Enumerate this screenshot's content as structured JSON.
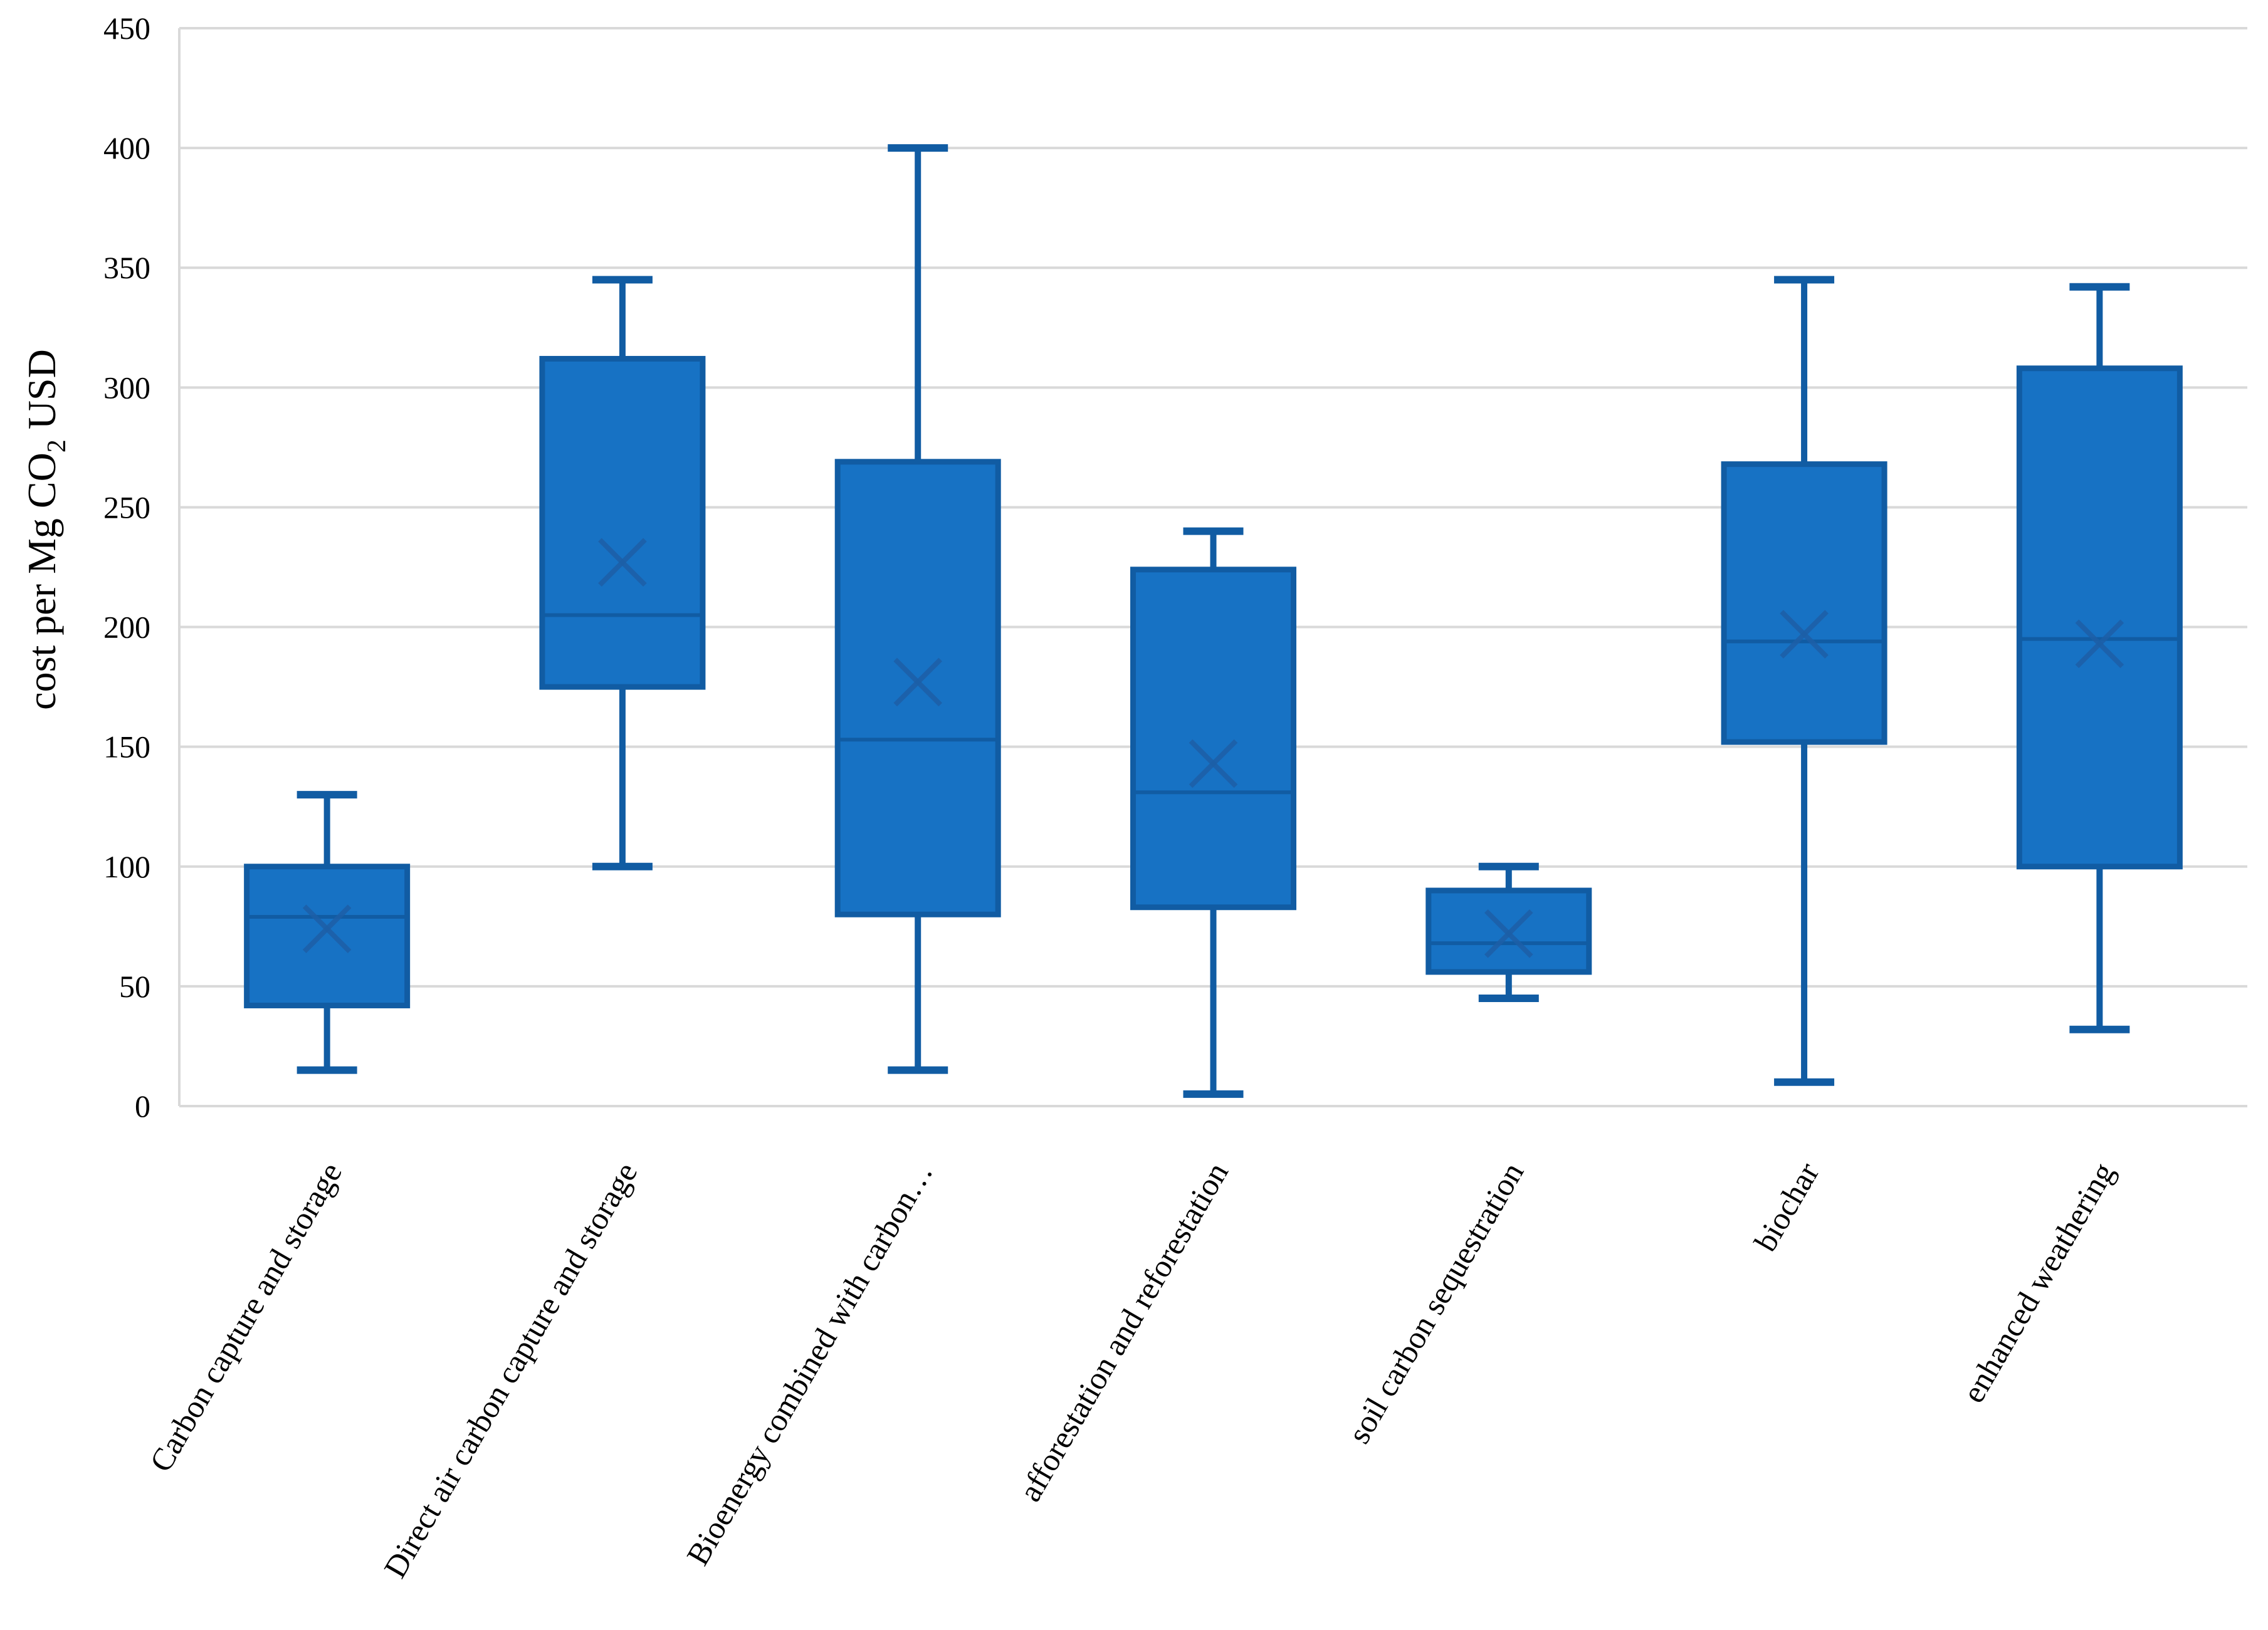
{
  "chart_data": {
    "type": "boxplot",
    "title": "",
    "ylabel": "cost per Mg CO₂ USD",
    "ylabel_parts": {
      "pre": "cost per Mg CO",
      "sub": "2",
      "post": " USD"
    },
    "xlabel": "",
    "ylim": [
      0,
      450
    ],
    "ytick_step": 50,
    "yticks": [
      0,
      50,
      100,
      150,
      200,
      250,
      300,
      350,
      400,
      450
    ],
    "grid": true,
    "legend_position": "none",
    "categories": [
      "Carbon capture and storage",
      "Direct air carbon capture and storage",
      "Bioenergy combined with carbon…",
      "afforestation and reforestation",
      "soil carbon sequestration",
      "biochar",
      "enhanced weathering"
    ],
    "series": [
      {
        "name": "Carbon capture and storage",
        "min": 15,
        "q1": 42,
        "median": 79,
        "mean": 74,
        "q3": 100,
        "max": 130
      },
      {
        "name": "Direct air carbon capture and storage",
        "min": 100,
        "q1": 175,
        "median": 205,
        "mean": 227,
        "q3": 312,
        "max": 345
      },
      {
        "name": "Bioenergy combined with carbon…",
        "min": 15,
        "q1": 80,
        "median": 153,
        "mean": 177,
        "q3": 269,
        "max": 400
      },
      {
        "name": "afforestation and reforestation",
        "min": 5,
        "q1": 83,
        "median": 131,
        "mean": 143,
        "q3": 224,
        "max": 240
      },
      {
        "name": "soil carbon sequestration",
        "min": 45,
        "q1": 56,
        "median": 68,
        "mean": 72,
        "q3": 90,
        "max": 100
      },
      {
        "name": "biochar",
        "min": 10,
        "q1": 152,
        "median": 194,
        "mean": 197,
        "q3": 268,
        "max": 345
      },
      {
        "name": "enhanced weathering",
        "min": 32,
        "q1": 100,
        "median": 195,
        "mean": 193,
        "q3": 308,
        "max": 342
      }
    ],
    "colors": {
      "box_fill": "#1772C4",
      "box_line": "#115CA3",
      "mean_marker": "#1D5FA7",
      "gridline": "#D9D9D9",
      "text": "#000000",
      "background": "#FFFFFF"
    }
  }
}
